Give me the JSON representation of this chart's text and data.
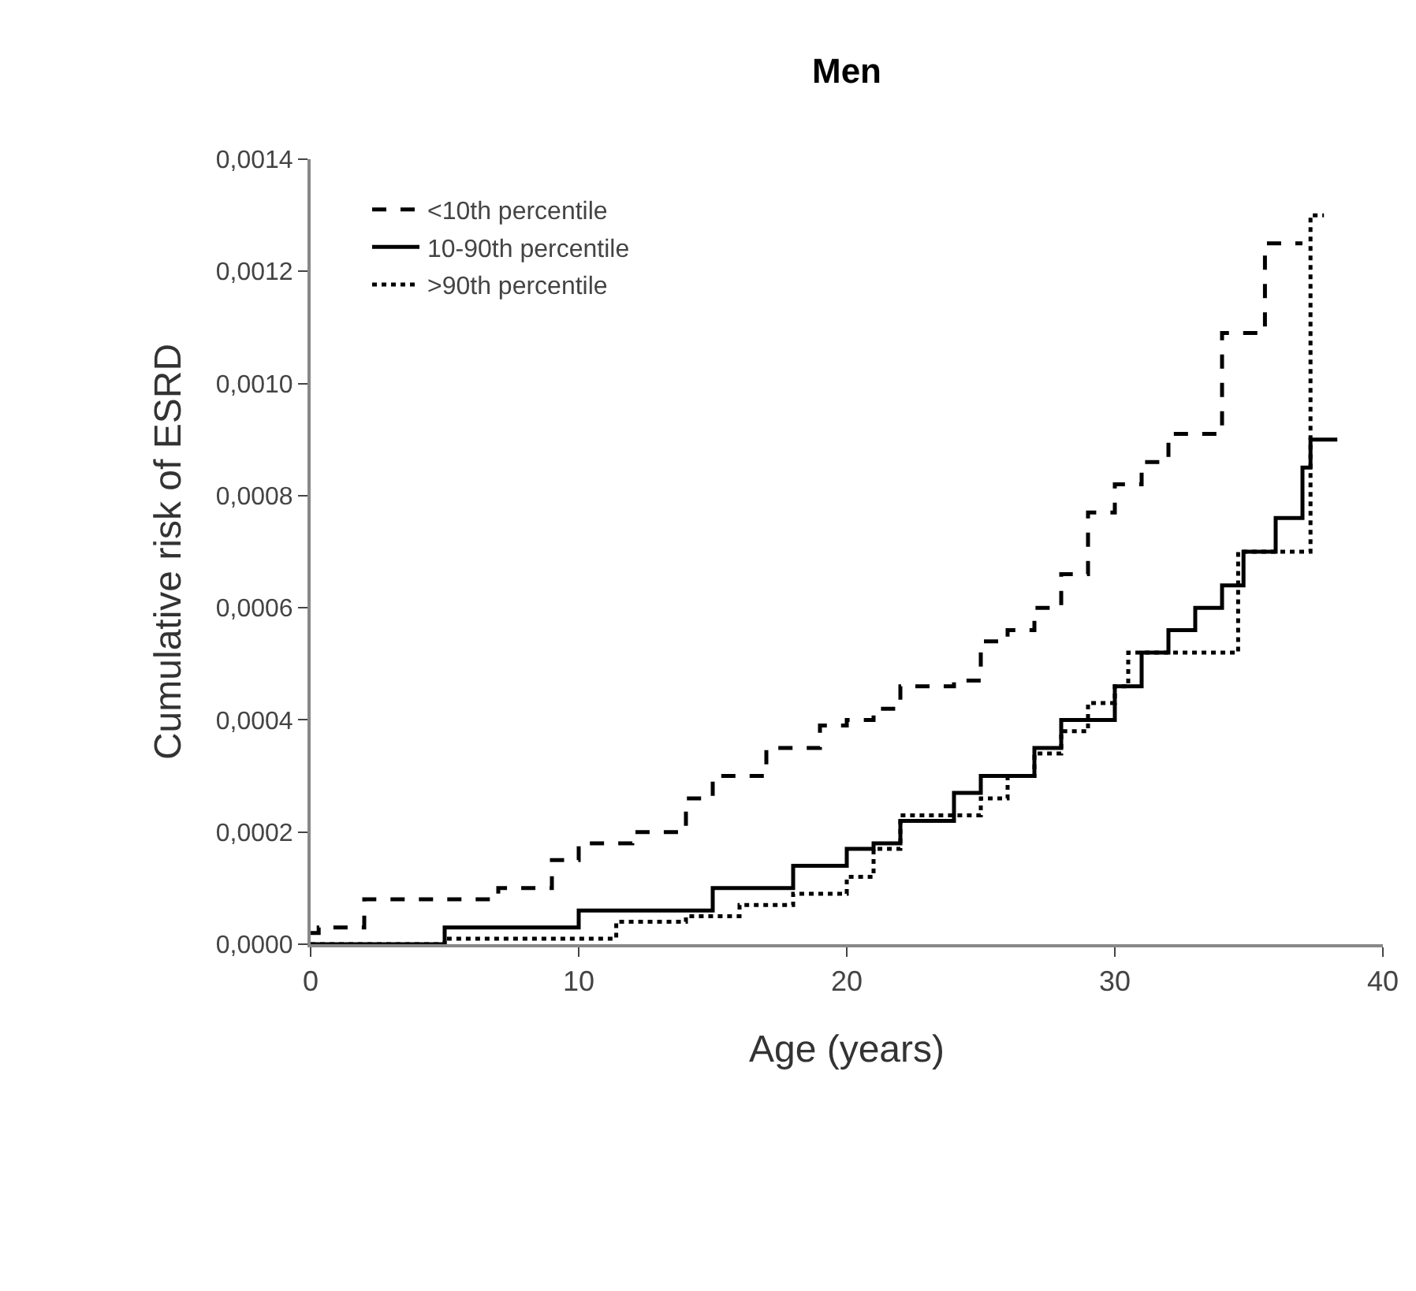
{
  "chart_data": {
    "type": "step",
    "title": "Men",
    "xlabel": "Age (years)",
    "ylabel": "Cumulative risk of ESRD",
    "xlim": [
      0,
      40
    ],
    "xticks": [
      0,
      10,
      20,
      30,
      40
    ],
    "ylim": [
      0,
      0.0014
    ],
    "yticks": [
      {
        "value": 0,
        "label": "0,0000"
      },
      {
        "value": 0.0002,
        "label": "0,0002"
      },
      {
        "value": 0.0004,
        "label": "0,0004"
      },
      {
        "value": 0.0006,
        "label": "0,0006"
      },
      {
        "value": 0.0008,
        "label": "0,0008"
      },
      {
        "value": 0.001,
        "label": "0,0010"
      },
      {
        "value": 0.0012,
        "label": "0,0012"
      },
      {
        "value": 0.0014,
        "label": "0,0014"
      }
    ],
    "legend": "top left",
    "series": [
      {
        "name": "<10th percentile",
        "color": "#000000",
        "line_style": "dashed",
        "x": [
          0,
          0.3,
          2,
          7,
          9,
          10,
          12,
          14,
          15,
          17,
          19,
          20,
          21,
          22,
          24,
          25,
          26,
          27,
          28,
          29,
          30,
          31,
          32,
          34,
          35.6,
          37
        ],
        "values": [
          2e-05,
          3e-05,
          8e-05,
          0.0001,
          0.00015,
          0.00018,
          0.0002,
          0.00026,
          0.0003,
          0.00035,
          0.00039,
          0.0004,
          0.00042,
          0.00046,
          0.00047,
          0.00054,
          0.00056,
          0.0006,
          0.00066,
          0.00077,
          0.00082,
          0.00086,
          0.00091,
          0.00109,
          0.00125,
          0.00125
        ]
      },
      {
        "name": "10-90th percentile",
        "color": "#000000",
        "line_style": "solid",
        "x": [
          0,
          5,
          10,
          15,
          18,
          20,
          21,
          22,
          24,
          25,
          27,
          28,
          30,
          31,
          32,
          33,
          34,
          34.8,
          36,
          37,
          37.3,
          38.3
        ],
        "values": [
          0,
          3e-05,
          6e-05,
          0.0001,
          0.00014,
          0.00017,
          0.00018,
          0.00022,
          0.00027,
          0.0003,
          0.00035,
          0.0004,
          0.00046,
          0.00052,
          0.00056,
          0.0006,
          0.00064,
          0.0007,
          0.00076,
          0.00085,
          0.0009,
          0.0009
        ]
      },
      {
        "name": ">90th percentile",
        "color": "#000000",
        "line_style": "dotted",
        "x": [
          0,
          5,
          11.4,
          14,
          16,
          18,
          20,
          21,
          22,
          25,
          26,
          27,
          28,
          29,
          30,
          30.5,
          34.6,
          37.3,
          37.8
        ],
        "values": [
          0,
          1e-05,
          4e-05,
          5e-05,
          7e-05,
          9e-05,
          0.00012,
          0.00017,
          0.00023,
          0.00026,
          0.0003,
          0.00034,
          0.00038,
          0.00043,
          0.00046,
          0.00052,
          0.0007,
          0.0013,
          0.0013
        ]
      }
    ]
  }
}
